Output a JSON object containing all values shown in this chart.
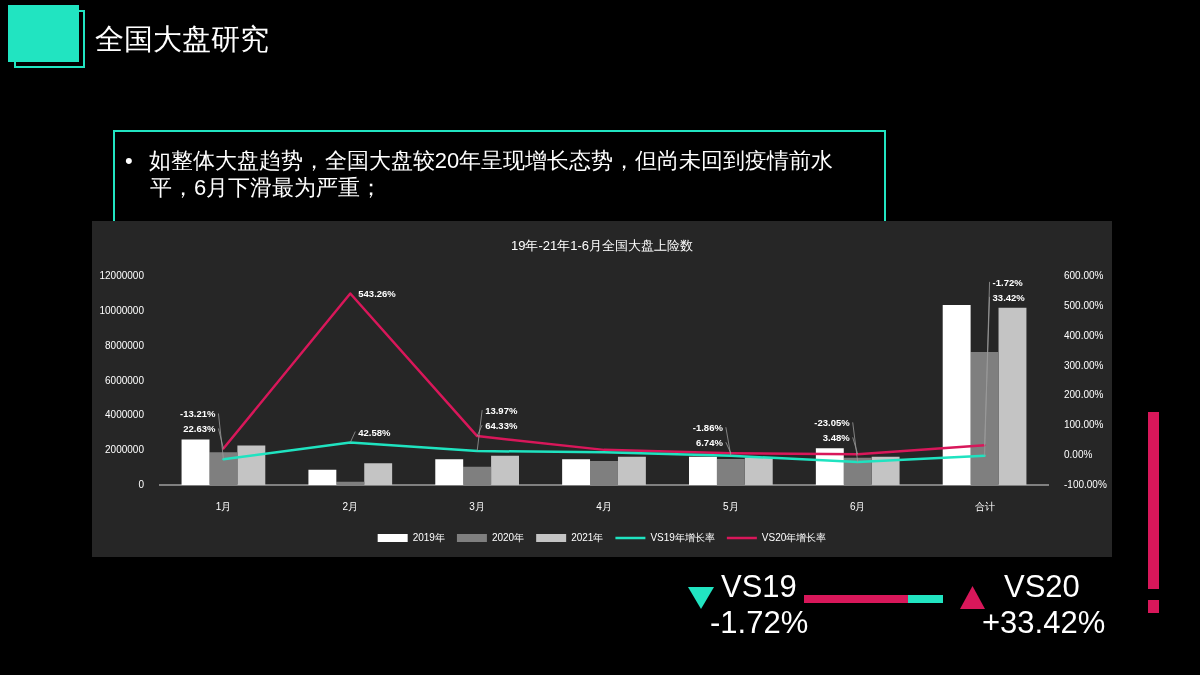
{
  "chart_data": {
    "type": "bar",
    "title": "19年-21年1-6月全国大盘上险数",
    "categories": [
      "1月",
      "2月",
      "3月",
      "4月",
      "5月",
      "6月",
      "合计"
    ],
    "series": [
      {
        "name": "2019年",
        "color": "#ffffff",
        "values": [
          2620000,
          880000,
          1480000,
          1480000,
          1620000,
          2110000,
          10370000
        ]
      },
      {
        "name": "2020年",
        "color": "#7f7f7f",
        "values": [
          1890000,
          190000,
          1050000,
          1380000,
          1490000,
          1570000,
          7660000
        ]
      },
      {
        "name": "2021年",
        "color": "#c4c4c4",
        "values": [
          2280000,
          1250000,
          1690000,
          1630000,
          1590000,
          1620000,
          10200000
        ]
      },
      {
        "name": "VS19年增长率",
        "type": "line",
        "axis": "y2",
        "color": "#1fe3c0",
        "values": [
          -13.21,
          42.58,
          13.97,
          10,
          -1.86,
          -23.05,
          -1.72
        ],
        "value_labels": [
          "-13.21%",
          "42.58%",
          "13.97%",
          null,
          "-1.86%",
          "-23.05%",
          "-1.72%"
        ]
      },
      {
        "name": "VS20年增长率",
        "type": "line",
        "axis": "y2",
        "color": "#d8175a",
        "values": [
          22.63,
          543.26,
          64.33,
          18,
          6.74,
          3.48,
          33.42
        ],
        "value_labels": [
          "22.63%",
          "543.26%",
          "64.33%",
          null,
          "6.74%",
          "3.48%",
          "33.42%"
        ]
      }
    ],
    "ylim": [
      0,
      12000000
    ],
    "yticks": [
      0,
      2000000,
      4000000,
      6000000,
      8000000,
      10000000,
      12000000
    ],
    "y2lim": [
      -100,
      600
    ],
    "y2ticks": [
      {
        "value": -100,
        "label": "-100.00%"
      },
      {
        "value": 0,
        "label": "0.00%"
      },
      {
        "value": 100,
        "label": "100.00%"
      },
      {
        "value": 200,
        "label": "200.00%"
      },
      {
        "value": 300,
        "label": "300.00%"
      },
      {
        "value": 400,
        "label": "400.00%"
      },
      {
        "value": 500,
        "label": "500.00%"
      },
      {
        "value": 600,
        "label": "600.00%"
      }
    ],
    "grid": false,
    "legend": "bottom",
    "marker": "none",
    "annotations": [
      "全国大盘研究",
      "• 如整体大盘趋势，全国大盘较20年呈现增长态势，但尚未回到疫情前水平，6月下滑最为严重；",
      "VS19",
      "-1.72%",
      "VS20",
      "+33.42%"
    ]
  }
}
